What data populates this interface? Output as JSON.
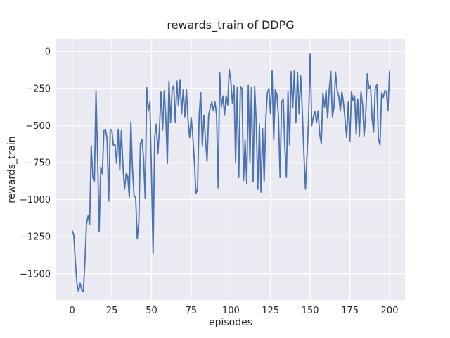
{
  "chart_data": {
    "type": "line",
    "title": "rewards_train of DDPG",
    "xlabel": "episodes",
    "ylabel": "rewards_train",
    "series": [
      {
        "name": "rewards_train",
        "color": "#4C72B0"
      }
    ],
    "style": {
      "axes_background": "#EAEAF2",
      "grid_color": "#FFFFFF",
      "text_color": "#262626",
      "line_width": 1.8,
      "grid_on": true,
      "legend": "none"
    },
    "xlim": [
      -10.05,
      209.75
    ],
    "ylim": [
      -1677,
      82
    ],
    "x_ticks": [
      0,
      25,
      50,
      75,
      100,
      125,
      150,
      175,
      200
    ],
    "x_tick_labels": [
      "0",
      "25",
      "50",
      "75",
      "100",
      "125",
      "150",
      "175",
      "200"
    ],
    "y_ticks": [
      0,
      -250,
      -500,
      -750,
      -1000,
      -1250,
      -1500
    ],
    "y_tick_labels": [
      "0",
      "−250",
      "−500",
      "−750",
      "−1000",
      "−1250",
      "−1500"
    ],
    "x": [
      0,
      1,
      2,
      3,
      4,
      5,
      6,
      7,
      8,
      9,
      10,
      11,
      12,
      13,
      14,
      15,
      16,
      17,
      18,
      19,
      20,
      21,
      22,
      23,
      24,
      25,
      26,
      27,
      28,
      29,
      30,
      31,
      32,
      33,
      34,
      35,
      36,
      37,
      38,
      39,
      40,
      41,
      42,
      43,
      44,
      45,
      46,
      47,
      48,
      49,
      50,
      51,
      52,
      53,
      54,
      55,
      56,
      57,
      58,
      59,
      60,
      61,
      62,
      63,
      64,
      65,
      66,
      67,
      68,
      69,
      70,
      71,
      72,
      73,
      74,
      75,
      76,
      77,
      78,
      79,
      80,
      81,
      82,
      83,
      84,
      85,
      86,
      87,
      88,
      89,
      90,
      91,
      92,
      93,
      94,
      95,
      96,
      97,
      98,
      99,
      100,
      101,
      102,
      103,
      104,
      105,
      106,
      107,
      108,
      109,
      110,
      111,
      112,
      113,
      114,
      115,
      116,
      117,
      118,
      119,
      120,
      121,
      122,
      123,
      124,
      125,
      126,
      127,
      128,
      129,
      130,
      131,
      132,
      133,
      134,
      135,
      136,
      137,
      138,
      139,
      140,
      141,
      142,
      143,
      144,
      145,
      146,
      147,
      148,
      149,
      150,
      151,
      152,
      153,
      154,
      155,
      156,
      157,
      158,
      159,
      160,
      161,
      162,
      163,
      164,
      165,
      166,
      167,
      168,
      169,
      170,
      171,
      172,
      173,
      174,
      175,
      176,
      177,
      178,
      179,
      180,
      181,
      182,
      183,
      184,
      185,
      186,
      187,
      188,
      189,
      190,
      191,
      192,
      193,
      194,
      195,
      196,
      197,
      198,
      199,
      200
    ],
    "values": [
      -1210,
      -1240,
      -1420,
      -1565,
      -1620,
      -1565,
      -1610,
      -1620,
      -1420,
      -1165,
      -1110,
      -1165,
      -635,
      -850,
      -880,
      -265,
      -700,
      -1215,
      -780,
      -825,
      -530,
      -525,
      -590,
      -1010,
      -525,
      -530,
      -635,
      -625,
      -755,
      -525,
      -800,
      -530,
      -770,
      -930,
      -825,
      -840,
      -985,
      -475,
      -795,
      -975,
      -985,
      -1265,
      -1150,
      -620,
      -595,
      -720,
      -990,
      -245,
      -400,
      -340,
      -840,
      -1365,
      -580,
      -490,
      -690,
      -525,
      -270,
      -530,
      -265,
      -440,
      -755,
      -200,
      -480,
      -255,
      -230,
      -480,
      -200,
      -365,
      -190,
      -420,
      -255,
      -440,
      -255,
      -460,
      -580,
      -445,
      -570,
      -740,
      -960,
      -930,
      -435,
      -275,
      -640,
      -430,
      -590,
      -740,
      -430,
      -380,
      -340,
      -400,
      -340,
      -430,
      -920,
      -140,
      -375,
      -300,
      -430,
      -300,
      -360,
      -120,
      -200,
      -350,
      -230,
      -750,
      -240,
      -850,
      -235,
      -250,
      -870,
      -600,
      -890,
      -230,
      -750,
      -240,
      -880,
      -235,
      -480,
      -930,
      -490,
      -950,
      -520,
      -880,
      -460,
      -280,
      -250,
      -420,
      -130,
      -595,
      -255,
      -290,
      -440,
      -850,
      -340,
      -320,
      -640,
      -850,
      -265,
      -630,
      -135,
      -380,
      -130,
      -480,
      -140,
      -420,
      -165,
      -390,
      -680,
      -930,
      -700,
      -450,
      -13,
      -500,
      -440,
      -405,
      -480,
      -400,
      -560,
      -620,
      -280,
      -375,
      -262,
      -450,
      -255,
      -135,
      -440,
      -375,
      -140,
      -262,
      -300,
      -400,
      -270,
      -350,
      -460,
      -580,
      -340,
      -605,
      -270,
      -330,
      -300,
      -560,
      -320,
      -570,
      -270,
      -357,
      -571,
      -420,
      -150,
      -250,
      -230,
      -450,
      -545,
      -245,
      -225,
      -590,
      -630,
      -280,
      -310,
      -265,
      -270,
      -400,
      -135
    ]
  }
}
